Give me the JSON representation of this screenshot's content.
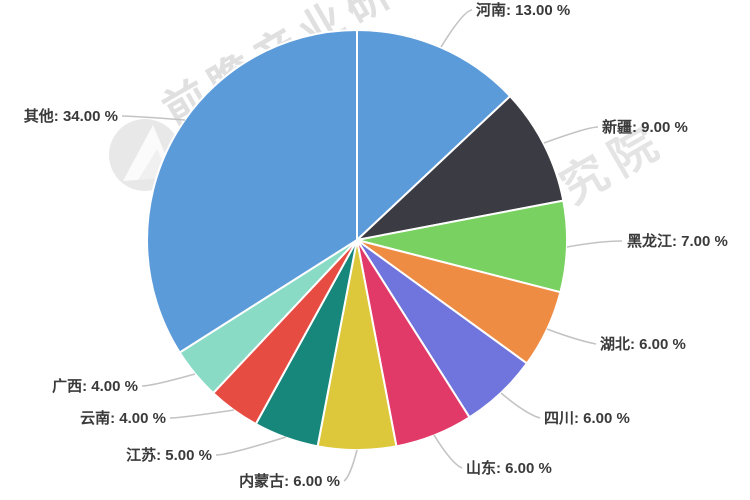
{
  "page": {
    "background": "#ffffff"
  },
  "chart_data": {
    "type": "pie",
    "title": "",
    "legend_position": "none",
    "start_angle_deg": 0,
    "direction": "clockwise",
    "label_color": "#3a3a3a",
    "leader_line_color": "#c3c3c3",
    "slice_border_color": "#ffffff",
    "series": [
      {
        "name": "河南",
        "value": 13.0,
        "color": "#5C9BDA"
      },
      {
        "name": "新疆",
        "value": 9.0,
        "color": "#3B3B43"
      },
      {
        "name": "黑龙江",
        "value": 7.0,
        "color": "#79D162"
      },
      {
        "name": "湖北",
        "value": 6.0,
        "color": "#EF8C44"
      },
      {
        "name": "四川",
        "value": 6.0,
        "color": "#6F75DC"
      },
      {
        "name": "山东",
        "value": 6.0,
        "color": "#E23A68"
      },
      {
        "name": "内蒙古",
        "value": 6.0,
        "color": "#DDC83C"
      },
      {
        "name": "江苏",
        "value": 5.0,
        "color": "#17877B"
      },
      {
        "name": "云南",
        "value": 4.0,
        "color": "#E74C43"
      },
      {
        "name": "广西",
        "value": 4.0,
        "color": "#89DBC6"
      },
      {
        "name": "其他",
        "value": 34.0,
        "color": "#5C9BDA"
      }
    ],
    "labels": [
      "河南: 13.00 %",
      "新疆: 9.00 %",
      "黑龙江: 7.00 %",
      "湖北: 6.00 %",
      "四川: 6.00 %",
      "山东: 6.00 %",
      "内蒙古: 6.00 %",
      "江苏: 5.00 %",
      "云南: 4.00 %",
      "广西: 4.00 %",
      "其他: 34.00 %"
    ]
  },
  "watermark": {
    "text": "前瞻产业研究院",
    "color": "#9a9a9a"
  }
}
